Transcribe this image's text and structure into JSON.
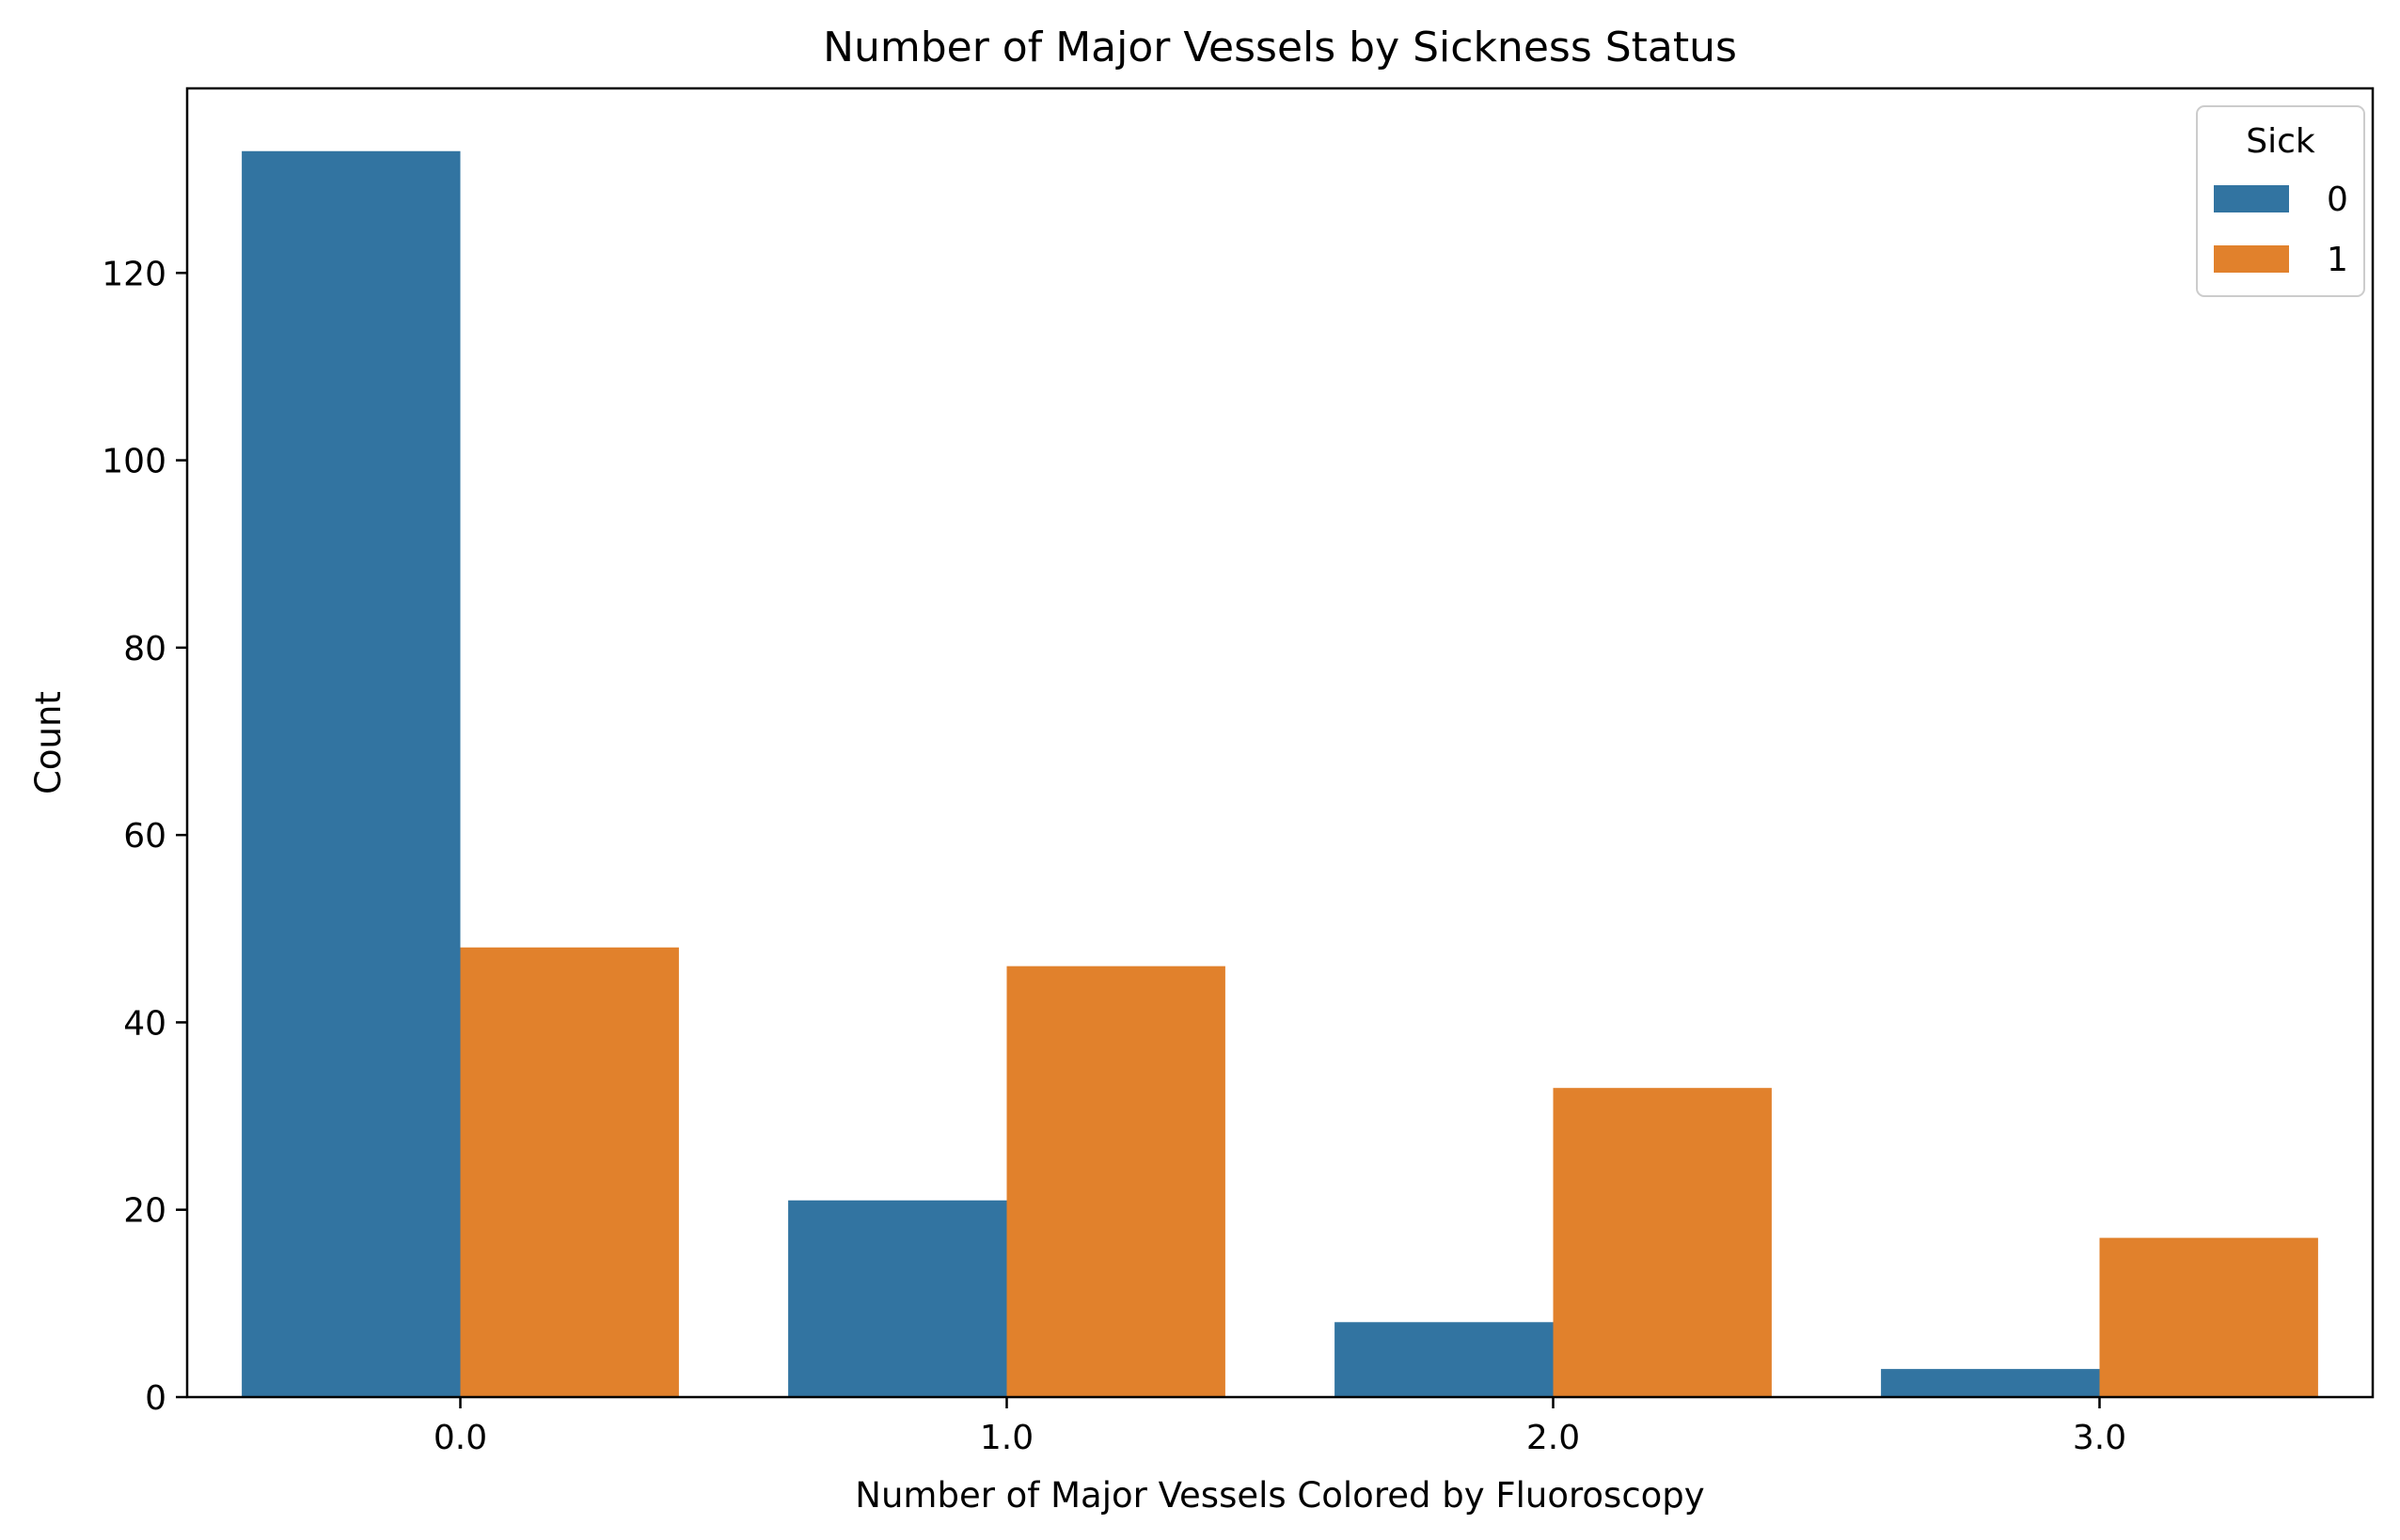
{
  "chart_data": {
    "type": "bar",
    "title": "Number of Major Vessels by Sickness Status",
    "xlabel": "Number of Major Vessels Colored by Fluoroscopy",
    "ylabel": "Count",
    "categories": [
      "0.0",
      "1.0",
      "2.0",
      "3.0"
    ],
    "series": [
      {
        "name": "0",
        "color": "#3274a1",
        "values": [
          133,
          21,
          8,
          3
        ]
      },
      {
        "name": "1",
        "color": "#e1812c",
        "values": [
          48,
          46,
          33,
          17
        ]
      }
    ],
    "ylim": [
      0,
      139.7
    ],
    "yticks": [
      0,
      20,
      40,
      60,
      80,
      100,
      120
    ],
    "legend": {
      "title": "Sick",
      "position": "top-right"
    },
    "grid": false
  }
}
